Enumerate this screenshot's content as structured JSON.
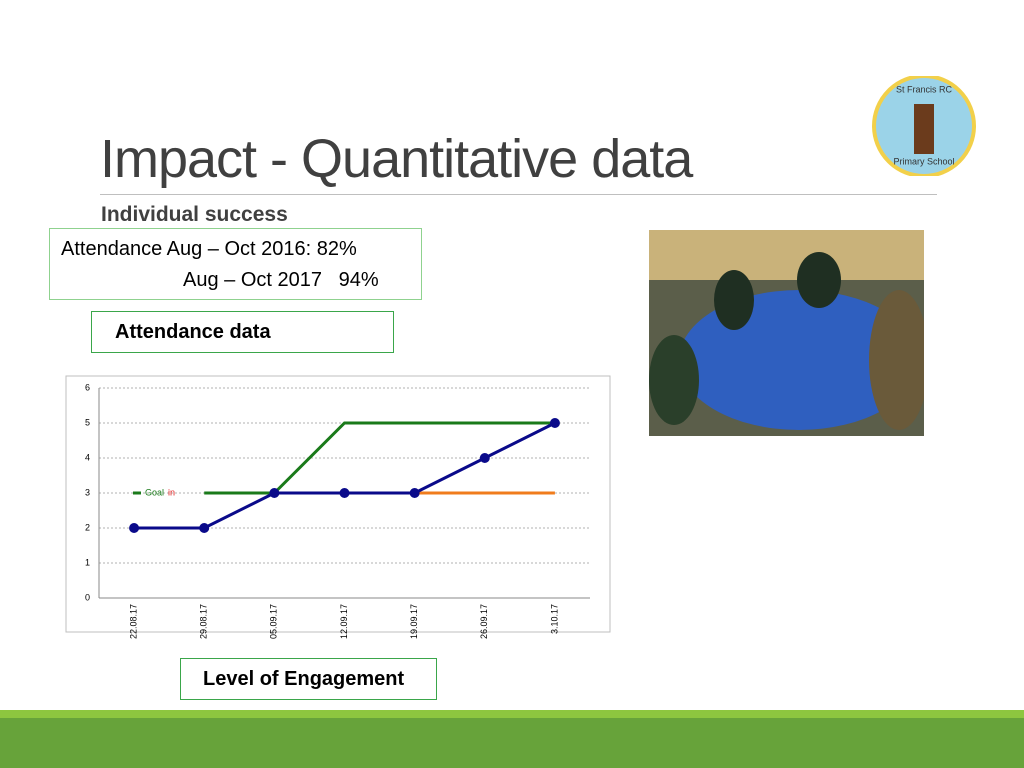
{
  "header": {
    "title": "Impact - Quantitative data",
    "subtitle": "Individual success"
  },
  "attendance_box": {
    "line1": "Attendance Aug – Oct 2016: 82%",
    "line2": "Aug – Oct 2017   94%"
  },
  "attendance_label": "Attendance data",
  "engagement_label": "Level of Engagement",
  "logo": {
    "top": "St Francis RC",
    "bottom": "Primary School"
  },
  "chart_data": {
    "type": "line",
    "categories": [
      "22.08.17",
      "29.08.17",
      "05.09.17",
      "12.09.17",
      "19.09.17",
      "26.09.17",
      "3.10.17"
    ],
    "series": [
      {
        "name": "Goal",
        "color": "#1a7a1a",
        "values": [
          null,
          3,
          3,
          5,
          5,
          5,
          5
        ]
      },
      {
        "name": "in",
        "color": "#f07c1c",
        "values": [
          null,
          null,
          3,
          3,
          3,
          3,
          3
        ]
      },
      {
        "color": "#0a0a8a",
        "values": [
          2,
          2,
          3,
          3,
          3,
          4,
          5
        ],
        "markers": true
      }
    ],
    "ylim": [
      0,
      6
    ],
    "yticks": [
      0,
      1,
      2,
      3,
      4,
      5,
      6
    ],
    "grid": true
  }
}
